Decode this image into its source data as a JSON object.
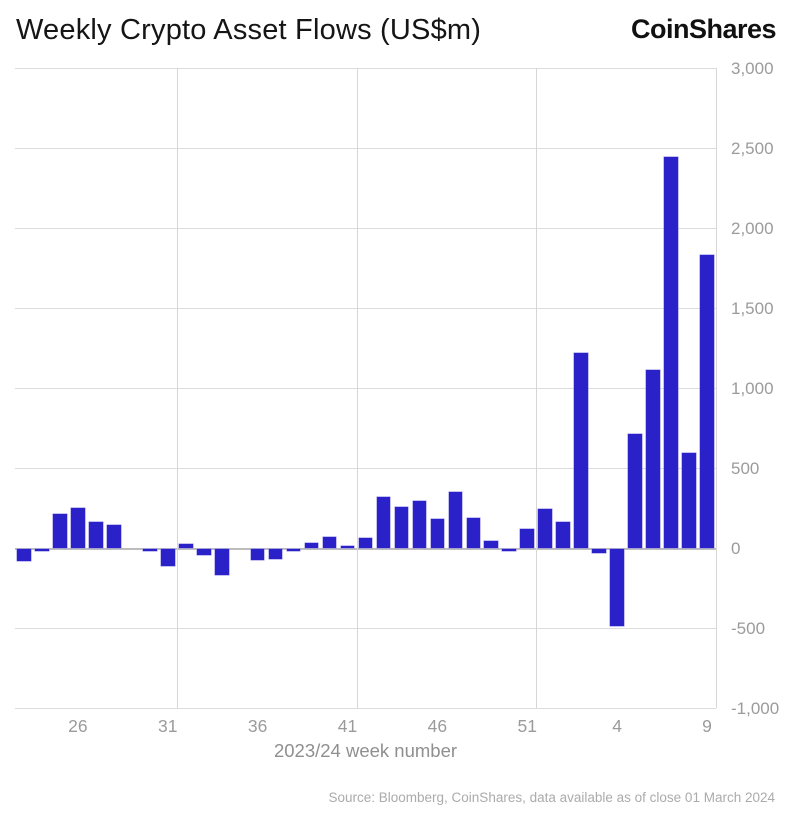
{
  "header": {
    "title": "Weekly Crypto Asset Flows (US$m)",
    "brand": "CoinShares"
  },
  "chart_data": {
    "type": "bar",
    "title": "Weekly Crypto Asset Flows (US$m)",
    "xlabel": "2023/24 week number",
    "ylabel": "",
    "ylim": [
      -1000,
      3000
    ],
    "grid": true,
    "legend": "none",
    "bar_color": "#2b21c8",
    "categories": [
      "23",
      "24",
      "25",
      "26",
      "27",
      "28",
      "29",
      "30",
      "31",
      "32",
      "33",
      "34",
      "35",
      "36",
      "37",
      "38",
      "39",
      "40",
      "41",
      "42",
      "43",
      "44",
      "45",
      "46",
      "47",
      "48",
      "49",
      "50",
      "51",
      "52",
      "1",
      "2",
      "3",
      "4",
      "5",
      "6",
      "7",
      "8",
      "9"
    ],
    "values": [
      -75,
      -15,
      215,
      250,
      160,
      145,
      0,
      -15,
      -105,
      25,
      -40,
      -160,
      0,
      -70,
      -60,
      -15,
      30,
      70,
      15,
      65,
      320,
      255,
      295,
      180,
      350,
      185,
      45,
      -15,
      120,
      245,
      160,
      1220,
      -25,
      -480,
      710,
      1110,
      2445,
      595,
      1830
    ],
    "y_ticks": [
      3000,
      2500,
      2000,
      1500,
      1000,
      500,
      0,
      -500,
      -1000
    ],
    "y_tick_labels": [
      "3,000",
      "2,500",
      "2,000",
      "1,500",
      "1,000",
      "500",
      "0",
      "-500",
      "-1,000"
    ],
    "x_tick_labels": [
      "26",
      "31",
      "36",
      "41",
      "46",
      "51",
      "4",
      "9"
    ],
    "x_tick_indices": [
      3,
      8,
      13,
      18,
      23,
      28,
      33,
      38
    ],
    "grid_boundary_indices": [
      9,
      19,
      29,
      39
    ]
  },
  "footer": {
    "source": "Source: Bloomberg, CoinShares, data available as of close 01 March 2024"
  }
}
